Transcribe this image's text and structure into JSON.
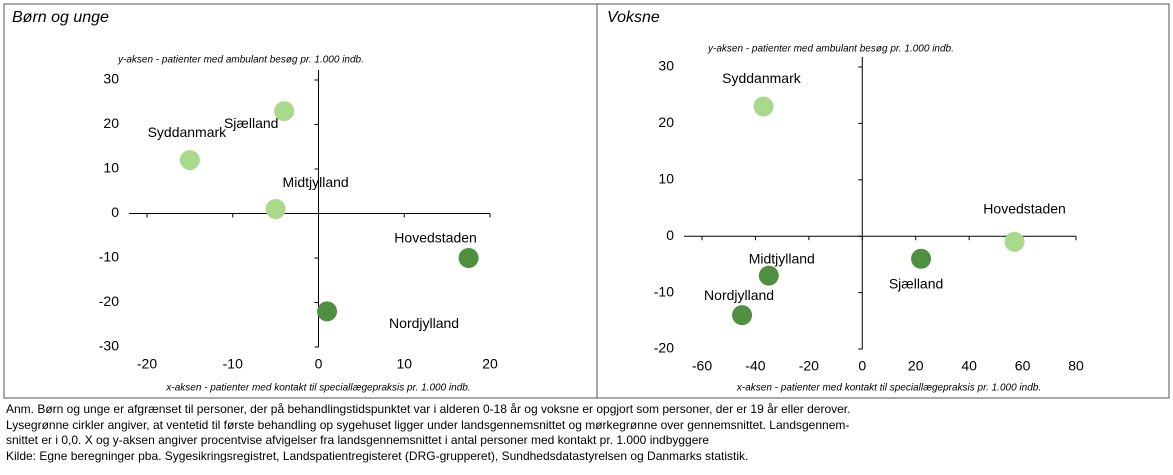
{
  "chart_data": [
    {
      "type": "scatter",
      "title": "Børn og unge",
      "ylabel": "y-aksen - patienter med ambulant besøg pr. 1.000 indb.",
      "xlabel": "x-aksen - patienter med kontakt til speciallægepraksis pr. 1.000 indb.",
      "point_labels": [
        "Sjælland",
        "Syddanmark",
        "Midtjylland",
        "Hovedstaden",
        "Nordjylland"
      ],
      "x": [
        -4,
        -15,
        -5,
        17.5,
        1
      ],
      "y": [
        23,
        12,
        1,
        -10,
        -22
      ],
      "colors": [
        "#a9d98b",
        "#a9d98b",
        "#a9d98b",
        "#4e9040",
        "#4e9040"
      ],
      "xlim": [
        -20,
        20
      ],
      "xticks": [
        -20,
        -10,
        0,
        10,
        20
      ],
      "ylim": [
        -30,
        30
      ],
      "yticks": [
        30,
        20,
        10,
        0,
        -10,
        -20,
        -30
      ]
    },
    {
      "type": "scatter",
      "title": "Voksne",
      "ylabel": "y-aksen - patienter med ambulant besøg pr. 1.000 indb.",
      "xlabel": "x-aksen - patienter med kontakt til speciallægepraksis pr. 1.000 indb.",
      "point_labels": [
        "Syddanmark",
        "Hovedstaden",
        "Midtjylland",
        "Sjælland",
        "Nordjylland"
      ],
      "x": [
        -37,
        57,
        -35,
        22,
        -45
      ],
      "y": [
        23,
        -1,
        -7,
        -4,
        -14
      ],
      "colors": [
        "#a9d98b",
        "#a9d98b",
        "#4e9040",
        "#4e9040",
        "#4e9040"
      ],
      "xlim": [
        -60,
        80
      ],
      "xticks": [
        -60,
        -40,
        -20,
        0,
        20,
        40,
        60,
        80
      ],
      "ylim": [
        -20,
        30
      ],
      "yticks": [
        30,
        20,
        10,
        0,
        -10,
        -20
      ]
    }
  ],
  "notes": [
    "Anm. Børn og unge er afgrænset til personer, der på behandlingstidspunktet var i alderen 0-18 år og voksne er opgjort som personer, der er 19 år eller derover.",
    "Lysegrønne cirkler angiver, at ventetid til første behandling op sygehuset ligger under landsgennemsnittet og mørkegrønne over gennemsnittet. Landsgennem-",
    "snittet er i 0,0. X og y-aksen angiver procentvise afvigelser fra landsgennemsnittet i antal personer med kontakt pr. 1.000 indbyggere",
    "Kilde: Egne beregninger pba. Sygesikringsregistret, Landspatientregisteret (DRG-grupperet), Sundhedsdatastyrelsen og Danmarks statistik."
  ]
}
